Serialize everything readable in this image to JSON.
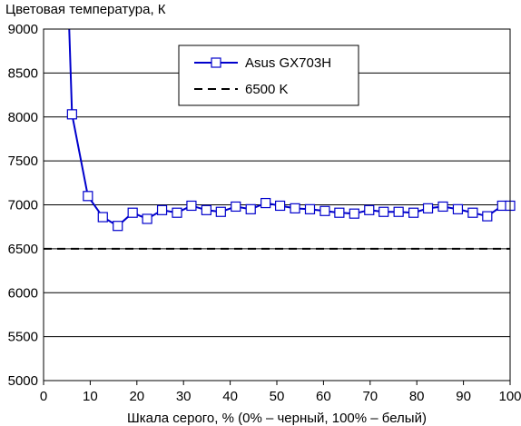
{
  "chart_data": {
    "type": "line",
    "ylabel": "Цветовая температура, К",
    "xlabel": "Шкала серого, % (0% – черный, 100% – белый)",
    "xlim": [
      0,
      100
    ],
    "ylim": [
      5000,
      9000
    ],
    "x_ticks": [
      0,
      10,
      20,
      30,
      40,
      50,
      60,
      70,
      80,
      90,
      100
    ],
    "y_ticks": [
      5000,
      5500,
      6000,
      6500,
      7000,
      7500,
      8000,
      8500,
      9000
    ],
    "grid": "horizontal",
    "legend_position": "top-center",
    "series": [
      {
        "name": "Asus GX703H",
        "color": "#0000cc",
        "marker": "square",
        "x": [
          6.1,
          9.5,
          12.7,
          15.9,
          19.1,
          22.2,
          25.4,
          28.6,
          31.7,
          34.9,
          38.0,
          41.2,
          44.4,
          47.6,
          50.7,
          53.9,
          57.1,
          60.3,
          63.4,
          66.6,
          69.8,
          72.9,
          76.1,
          79.3,
          82.4,
          85.6,
          88.8,
          92.0,
          95.1,
          98.3,
          100
        ],
        "y": [
          8030,
          7100,
          6860,
          6760,
          6910,
          6840,
          6940,
          6910,
          6990,
          6940,
          6920,
          6980,
          6950,
          7020,
          6990,
          6960,
          6950,
          6930,
          6910,
          6900,
          6940,
          6920,
          6920,
          6910,
          6960,
          6980,
          6950,
          6910,
          6870,
          6990,
          6990
        ],
        "line_start": [
          5.5,
          9200
        ]
      },
      {
        "name": "6500 K",
        "color": "#000000",
        "style": "dashed",
        "x": [
          0,
          100
        ],
        "y": [
          6500,
          6500
        ]
      }
    ]
  }
}
